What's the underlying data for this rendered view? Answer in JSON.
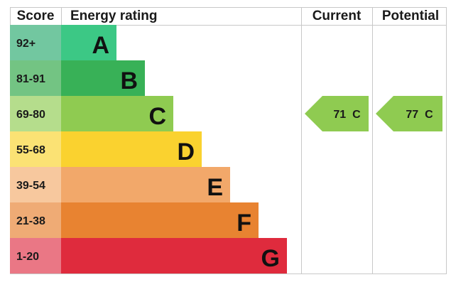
{
  "chart_data": {
    "type": "table",
    "headers": {
      "score": "Score",
      "rating": "Energy rating",
      "current": "Current",
      "potential": "Potential"
    },
    "bands": [
      {
        "score": "92+",
        "letter": "A",
        "color": "#3cc885",
        "score_color": "#72c7a0"
      },
      {
        "score": "81-91",
        "letter": "B",
        "color": "#38b157",
        "score_color": "#73c483"
      },
      {
        "score": "69-80",
        "letter": "C",
        "color": "#8fcb51",
        "score_color": "#b5dd8c"
      },
      {
        "score": "55-68",
        "letter": "D",
        "color": "#fad22f",
        "score_color": "#fbe274"
      },
      {
        "score": "39-54",
        "letter": "E",
        "color": "#f2a86a",
        "score_color": "#f7c89e"
      },
      {
        "score": "21-38",
        "letter": "F",
        "color": "#e88331",
        "score_color": "#efab75"
      },
      {
        "score": "1-20",
        "letter": "G",
        "color": "#df2b3d",
        "score_color": "#ea7785"
      }
    ],
    "current": {
      "value": 71,
      "letter": "C",
      "label": "71  C",
      "color": "#8fcb51"
    },
    "potential": {
      "value": 77,
      "letter": "C",
      "label": "77  C",
      "color": "#8fcb51"
    }
  }
}
